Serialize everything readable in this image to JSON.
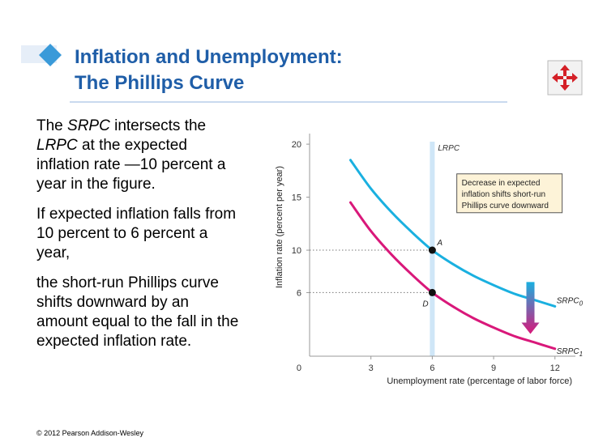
{
  "slide": {
    "title_line1": "Inflation and Unemployment:",
    "title_line2": "The Phillips Curve",
    "paragraphs": [
      [
        "The ",
        {
          "i": "SRPC"
        },
        " intersects the ",
        {
          "i": "LRPC"
        },
        " at the expected inflation rate —10 percent a year in the figure."
      ],
      [
        "If expected inflation falls from 10 percent to 6 percent a year,"
      ],
      [
        "the short-run Phillips curve shifts downward by an amount equal to the fall in the expected inflation rate."
      ]
    ],
    "copyright": "© 2012 Pearson Addison-Wesley",
    "colors": {
      "title": "#1f5ea8",
      "srpc0": "#1ab0e0",
      "srpc1": "#d9187a",
      "lrpc": "#cfe6f7",
      "callout_bg": "#fdf3d8"
    },
    "icons": {
      "title_bullet": "diamond-icon",
      "nav": "move-arrows-icon"
    }
  },
  "chart_data": {
    "type": "line",
    "ylabel": "Inflation rate (percent per year)",
    "xlabel": "Unemployment rate (percentage of labor force)",
    "xlim": [
      0,
      13
    ],
    "ylim": [
      0,
      21
    ],
    "x_ticks": [
      0,
      3,
      6,
      9,
      12
    ],
    "y_ticks": [
      6,
      10,
      15,
      20
    ],
    "origin_label": "0",
    "lrpc": {
      "name": "LRPC",
      "x": 6
    },
    "series": [
      {
        "name": "SRPC",
        "sub": "0",
        "color": "#1ab0e0",
        "x": [
          2,
          3,
          4,
          5,
          6,
          7,
          8,
          9,
          10,
          11,
          12
        ],
        "y": [
          18.5,
          15.8,
          13.6,
          11.7,
          10,
          8.7,
          7.6,
          6.7,
          5.9,
          5.3,
          4.7
        ]
      },
      {
        "name": "SRPC",
        "sub": "1",
        "color": "#d9187a",
        "x": [
          2,
          3,
          4,
          5,
          6,
          7,
          8,
          9,
          10,
          11,
          12
        ],
        "y": [
          14.5,
          11.8,
          9.6,
          7.7,
          6,
          4.7,
          3.6,
          2.7,
          1.9,
          1.3,
          0.7
        ]
      }
    ],
    "points": [
      {
        "label": "A",
        "x": 6,
        "y": 10
      },
      {
        "label": "D",
        "x": 6,
        "y": 6
      }
    ],
    "callout": [
      "Decrease in expected",
      "inflation shifts short-run",
      "Phillips curve downward"
    ],
    "shift_arrow": {
      "x": 10.8,
      "from_y": 7.0,
      "to_y": 2.1
    }
  }
}
